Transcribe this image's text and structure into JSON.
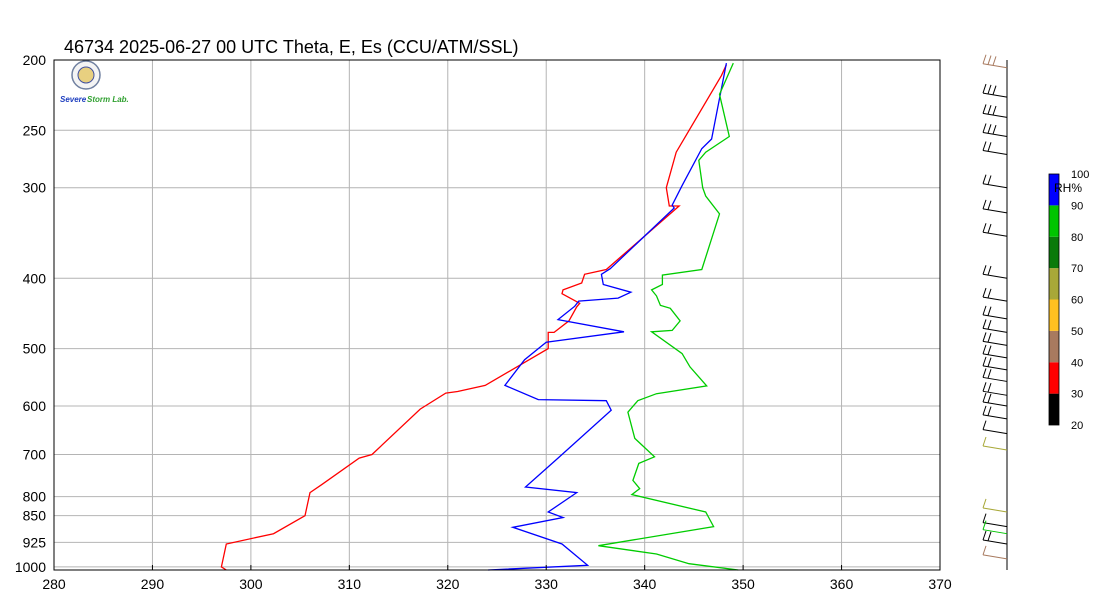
{
  "chart_data": {
    "type": "line",
    "title": "46734  2025-06-27 00 UTC  Theta, E, Es (CCU/ATM/SSL)",
    "xlabel": "",
    "ylabel": "",
    "xlim": [
      280,
      370
    ],
    "ylim": [
      1010,
      200
    ],
    "y_scale": "log",
    "grid": true,
    "x_ticks": [
      "280",
      "290",
      "300",
      "310",
      "320",
      "330",
      "340",
      "350",
      "360",
      "370"
    ],
    "y_ticks": [
      {
        "value": 200,
        "label": "200"
      },
      {
        "value": 250,
        "label": "250"
      },
      {
        "value": 300,
        "label": "300"
      },
      {
        "value": 400,
        "label": "400"
      },
      {
        "value": 500,
        "label": "500"
      },
      {
        "value": 600,
        "label": "600"
      },
      {
        "value": 700,
        "label": "700"
      },
      {
        "value": 800,
        "label": "800"
      },
      {
        "value": 850,
        "label": "850"
      },
      {
        "value": 925,
        "label": "925"
      },
      {
        "value": 1000,
        "label": "1000"
      }
    ],
    "series": [
      {
        "color": "#ff0000",
        "points": [
          [
            297.5,
            1010
          ],
          [
            297,
            1000
          ],
          [
            297.5,
            930
          ],
          [
            302.3,
            900
          ],
          [
            305.5,
            850
          ],
          [
            306,
            790
          ],
          [
            307.2,
            770
          ],
          [
            311,
            708
          ],
          [
            312.3,
            700
          ],
          [
            317.2,
            606
          ],
          [
            319.8,
            576
          ],
          [
            321,
            573
          ],
          [
            323.8,
            562
          ],
          [
            330.2,
            500
          ],
          [
            330.2,
            475
          ],
          [
            330.8,
            475
          ],
          [
            332.3,
            458
          ],
          [
            333.1,
            438
          ],
          [
            333.4,
            433
          ],
          [
            331.6,
            420
          ],
          [
            331.7,
            415
          ],
          [
            333.6,
            406
          ],
          [
            333.9,
            395
          ],
          [
            336.1,
            389
          ],
          [
            343.5,
            318
          ],
          [
            342.5,
            318
          ],
          [
            342.2,
            300
          ],
          [
            343.2,
            268
          ],
          [
            347.8,
            210
          ],
          [
            348.3,
            203
          ]
        ]
      },
      {
        "color": "#0000ff",
        "points": [
          [
            324.1,
            1010
          ],
          [
            334.2,
            995
          ],
          [
            331.6,
            930
          ],
          [
            326.6,
            882
          ],
          [
            331.7,
            855
          ],
          [
            330.2,
            840
          ],
          [
            333.1,
            790
          ],
          [
            327.9,
            776
          ],
          [
            331.2,
            708
          ],
          [
            336.6,
            608
          ],
          [
            336.1,
            590
          ],
          [
            329.2,
            588
          ],
          [
            325.8,
            562
          ],
          [
            327.8,
            518
          ],
          [
            330,
            490
          ],
          [
            337.9,
            474
          ],
          [
            331.2,
            456
          ],
          [
            332.9,
            437
          ],
          [
            333.3,
            430
          ],
          [
            337.3,
            426
          ],
          [
            338.6,
            418
          ],
          [
            335.8,
            408
          ],
          [
            335.6,
            395
          ],
          [
            336.5,
            388
          ],
          [
            343,
            320
          ],
          [
            342.8,
            317
          ],
          [
            343.8,
            298
          ],
          [
            345.8,
            265
          ],
          [
            346.8,
            257
          ],
          [
            348.3,
            202
          ]
        ]
      },
      {
        "color": "#00cc00",
        "points": [
          [
            349.5,
            1010
          ],
          [
            344.5,
            990
          ],
          [
            341.2,
            960
          ],
          [
            335.3,
            935
          ],
          [
            347,
            880
          ],
          [
            346.5,
            855
          ],
          [
            346.2,
            840
          ],
          [
            338.7,
            795
          ],
          [
            339.5,
            780
          ],
          [
            338.8,
            760
          ],
          [
            339.4,
            720
          ],
          [
            341,
            705
          ],
          [
            339,
            665
          ],
          [
            338.3,
            612
          ],
          [
            339.3,
            590
          ],
          [
            341.2,
            577
          ],
          [
            346.3,
            563
          ],
          [
            344.6,
            530
          ],
          [
            343.8,
            508
          ],
          [
            340.7,
            474
          ],
          [
            342.8,
            472
          ],
          [
            343.6,
            458
          ],
          [
            342.6,
            440
          ],
          [
            341.6,
            436
          ],
          [
            341.2,
            423
          ],
          [
            340.7,
            415
          ],
          [
            341.8,
            408
          ],
          [
            341.8,
            396
          ],
          [
            345.8,
            389
          ],
          [
            347.6,
            326
          ],
          [
            346.2,
            308
          ],
          [
            345.9,
            300
          ],
          [
            345.5,
            275
          ],
          [
            346.2,
            268
          ],
          [
            348.6,
            255
          ],
          [
            347.6,
            223
          ],
          [
            349,
            202
          ]
        ]
      }
    ]
  },
  "colorbar": {
    "label": "RH%",
    "segments": [
      {
        "range": [
          20,
          30
        ],
        "color": "#000000"
      },
      {
        "range": [
          30,
          40
        ],
        "color": "#ff0000"
      },
      {
        "range": [
          40,
          50
        ],
        "color": "#a87a5f"
      },
      {
        "range": [
          50,
          60
        ],
        "color": "#ffc020"
      },
      {
        "range": [
          60,
          70
        ],
        "color": "#a8a838"
      },
      {
        "range": [
          70,
          80
        ],
        "color": "#0a7a0a"
      },
      {
        "range": [
          80,
          90
        ],
        "color": "#00c400"
      },
      {
        "range": [
          90,
          100
        ],
        "color": "#0000ff"
      }
    ],
    "ticks": [
      "20",
      "30",
      "40",
      "50",
      "60",
      "70",
      "80",
      "90",
      "100"
    ]
  },
  "wind_profile": [
    {
      "level": 205,
      "color": "#a87a5f",
      "barbs": 3
    },
    {
      "level": 225,
      "color": "#000000",
      "barbs": 3
    },
    {
      "level": 240,
      "color": "#000000",
      "barbs": 3
    },
    {
      "level": 255,
      "color": "#000000",
      "barbs": 3
    },
    {
      "level": 270,
      "color": "#000000",
      "barbs": 2
    },
    {
      "level": 300,
      "color": "#000000",
      "barbs": 2
    },
    {
      "level": 325,
      "color": "#000000",
      "barbs": 2
    },
    {
      "level": 350,
      "color": "#000000",
      "barbs": 2
    },
    {
      "level": 400,
      "color": "#000000",
      "barbs": 2
    },
    {
      "level": 430,
      "color": "#000000",
      "barbs": 2
    },
    {
      "level": 455,
      "color": "#000000",
      "barbs": 2
    },
    {
      "level": 475,
      "color": "#000000",
      "barbs": 2
    },
    {
      "level": 495,
      "color": "#000000",
      "barbs": 2
    },
    {
      "level": 515,
      "color": "#000000",
      "barbs": 2
    },
    {
      "level": 535,
      "color": "#000000",
      "barbs": 2
    },
    {
      "level": 555,
      "color": "#000000",
      "barbs": 2
    },
    {
      "level": 580,
      "color": "#000000",
      "barbs": 2
    },
    {
      "level": 600,
      "color": "#000000",
      "barbs": 2
    },
    {
      "level": 625,
      "color": "#000000",
      "barbs": 2
    },
    {
      "level": 655,
      "color": "#000000",
      "barbs": 1
    },
    {
      "level": 690,
      "color": "#a8a838",
      "barbs": 1
    },
    {
      "level": 840,
      "color": "#a8a838",
      "barbs": 1
    },
    {
      "level": 880,
      "color": "#000000",
      "barbs": 1
    },
    {
      "level": 900,
      "color": "#00c400",
      "barbs": 1
    },
    {
      "level": 930,
      "color": "#000000",
      "barbs": 2
    },
    {
      "level": 975,
      "color": "#a87a5f",
      "barbs": 1
    }
  ],
  "logo": {
    "text": "Severe Storm Lab."
  }
}
